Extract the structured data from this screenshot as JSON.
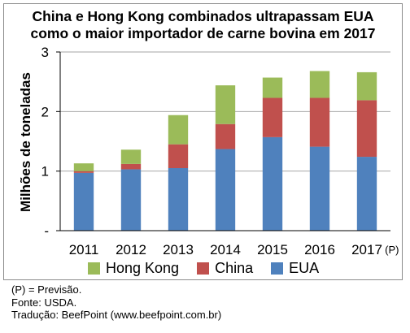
{
  "chart_data": {
    "type": "bar",
    "stacked": true,
    "title_line1": "China e Hong Kong combinados ultrapassam EUA",
    "title_line2": "como o maior importador de carne bovina em 2017",
    "ylabel": "Milhões de toneladas",
    "xlabel": "",
    "ylim": [
      0,
      3
    ],
    "yticks": [
      "-",
      "1",
      "2",
      "3"
    ],
    "grid": true,
    "legend_position": "bottom",
    "categories": [
      "2011",
      "2012",
      "2013",
      "2014",
      "2015",
      "2016",
      "2017"
    ],
    "category_suffix": "(P)",
    "series": [
      {
        "name": "EUA",
        "color": "#4f81bd",
        "values": [
          0.97,
          1.03,
          1.05,
          1.37,
          1.57,
          1.41,
          1.24
        ]
      },
      {
        "name": "China",
        "color": "#c0504d",
        "values": [
          0.03,
          0.09,
          0.4,
          0.42,
          0.66,
          0.82,
          0.95
        ]
      },
      {
        "name": "Hong Kong",
        "color": "#9bbb59",
        "values": [
          0.13,
          0.24,
          0.49,
          0.65,
          0.34,
          0.45,
          0.47
        ]
      }
    ]
  },
  "legend": [
    {
      "label": "Hong Kong",
      "color": "#9bbb59"
    },
    {
      "label": "China",
      "color": "#c0504d"
    },
    {
      "label": "EUA",
      "color": "#4f81bd"
    }
  ],
  "notes": {
    "forecast": "(P) = Previsão.",
    "source": "Fonte: USDA.",
    "translation": "Tradução: BeefPoint (www.beefpoint.com.br)"
  }
}
